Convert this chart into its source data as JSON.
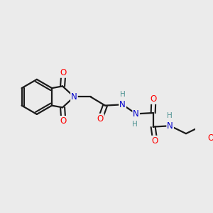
{
  "background_color": "#ebebeb",
  "bond_color": "#1a1a1a",
  "atom_colors": {
    "O": "#ff0000",
    "N": "#0000cc",
    "H": "#4a9090",
    "C": "#1a1a1a"
  },
  "figsize": [
    3.0,
    3.0
  ],
  "dpi": 100,
  "xlim": [
    0,
    10
  ],
  "ylim": [
    0,
    10
  ]
}
